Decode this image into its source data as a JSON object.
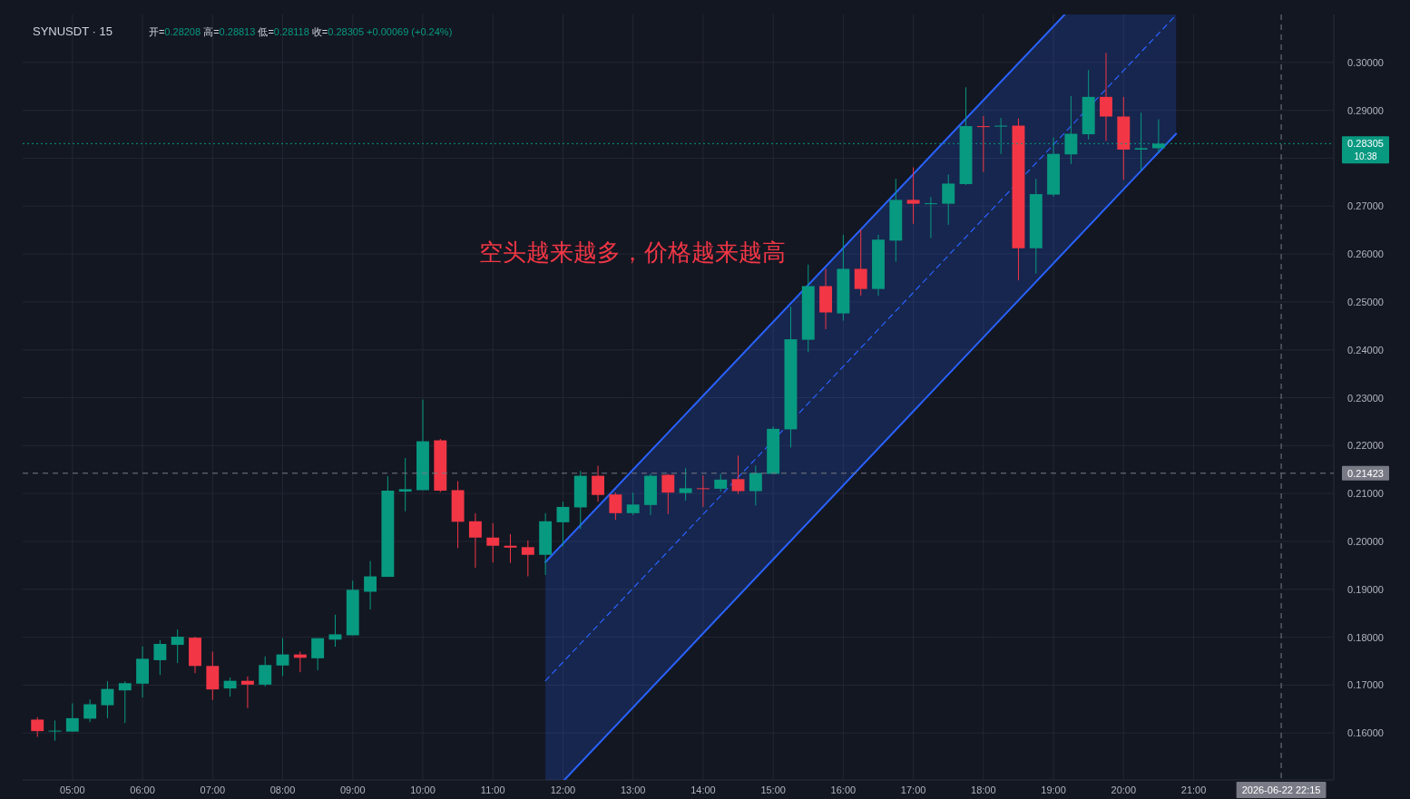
{
  "chart_data": {
    "type": "candlestick",
    "title": "SYNUSDT · 15",
    "subtitle": "开=0.28208 高=0.28813 低=0.28118 收=0.28305 +0.00069 (+0.24%)",
    "annotations": [
      "空头越来越多，价格越来越高"
    ],
    "x": [
      4.5,
      4.75,
      5,
      5.25,
      5.5,
      5.75,
      6,
      6.25,
      6.5,
      6.75,
      7,
      7.25,
      7.5,
      7.75,
      8,
      8.25,
      8.5,
      8.75,
      9,
      9.25,
      9.5,
      9.75,
      10,
      10.25,
      10.5,
      10.75,
      11,
      11.25,
      11.5,
      11.75,
      12,
      12.25,
      12.5,
      12.75,
      13,
      13.25,
      13.5,
      13.75,
      14,
      14.25,
      14.5,
      14.75,
      15,
      15.25,
      15.5,
      15.75,
      16,
      16.25,
      16.5,
      16.75,
      17,
      17.25,
      17.5,
      17.75,
      18,
      18.25,
      18.5,
      18.75,
      19,
      19.25,
      19.5,
      19.75,
      20,
      20.25,
      20.5
    ],
    "ohlc": [
      [
        0.1628,
        0.1633,
        0.1592,
        0.1604
      ],
      [
        0.1604,
        0.1626,
        0.1584,
        0.1605
      ],
      [
        0.1603,
        0.1662,
        0.1603,
        0.1631
      ],
      [
        0.163,
        0.167,
        0.1623,
        0.166
      ],
      [
        0.1658,
        0.1708,
        0.1631,
        0.1692
      ],
      [
        0.1689,
        0.1708,
        0.1621,
        0.1704
      ],
      [
        0.1703,
        0.1781,
        0.1674,
        0.1755
      ],
      [
        0.1752,
        0.1794,
        0.1721,
        0.1786
      ],
      [
        0.1784,
        0.1816,
        0.1746,
        0.1801
      ],
      [
        0.1799,
        0.1801,
        0.1725,
        0.174
      ],
      [
        0.174,
        0.177,
        0.1669,
        0.1691
      ],
      [
        0.1693,
        0.1716,
        0.1676,
        0.1709
      ],
      [
        0.1709,
        0.1718,
        0.1652,
        0.1701
      ],
      [
        0.1701,
        0.176,
        0.1697,
        0.1742
      ],
      [
        0.1741,
        0.1798,
        0.1719,
        0.1764
      ],
      [
        0.1764,
        0.177,
        0.1727,
        0.1757
      ],
      [
        0.1756,
        0.1798,
        0.1731,
        0.1798
      ],
      [
        0.1795,
        0.1847,
        0.178,
        0.1806
      ],
      [
        0.1804,
        0.1918,
        0.1804,
        0.1899
      ],
      [
        0.1895,
        0.1959,
        0.1858,
        0.1927
      ],
      [
        0.1926,
        0.2136,
        0.1926,
        0.2106
      ],
      [
        0.2104,
        0.2174,
        0.2063,
        0.2109
      ],
      [
        0.2107,
        0.2296,
        0.2107,
        0.2209
      ],
      [
        0.2211,
        0.2214,
        0.2103,
        0.2106
      ],
      [
        0.2107,
        0.2126,
        0.1986,
        0.2041
      ],
      [
        0.2042,
        0.2059,
        0.1945,
        0.2008
      ],
      [
        0.2008,
        0.2038,
        0.1956,
        0.1991
      ],
      [
        0.1991,
        0.2015,
        0.1955,
        0.1987
      ],
      [
        0.1988,
        0.2002,
        0.1927,
        0.1972
      ],
      [
        0.1972,
        0.2059,
        0.193,
        0.2042
      ],
      [
        0.204,
        0.2083,
        0.199,
        0.2072
      ],
      [
        0.2071,
        0.2147,
        0.2026,
        0.2137
      ],
      [
        0.2137,
        0.2158,
        0.2083,
        0.2097
      ],
      [
        0.2098,
        0.2102,
        0.2045,
        0.2059
      ],
      [
        0.2059,
        0.2102,
        0.2055,
        0.2077
      ],
      [
        0.2076,
        0.2141,
        0.2055,
        0.2137
      ],
      [
        0.2139,
        0.2141,
        0.2057,
        0.2102
      ],
      [
        0.2101,
        0.2153,
        0.2085,
        0.2111
      ],
      [
        0.2111,
        0.2138,
        0.2072,
        0.211
      ],
      [
        0.211,
        0.2141,
        0.2104,
        0.2129
      ],
      [
        0.213,
        0.2179,
        0.2099,
        0.2105
      ],
      [
        0.2105,
        0.2158,
        0.2075,
        0.2143
      ],
      [
        0.2141,
        0.224,
        0.2141,
        0.2235
      ],
      [
        0.2234,
        0.249,
        0.2196,
        0.2422
      ],
      [
        0.2421,
        0.2578,
        0.2395,
        0.2533
      ],
      [
        0.2533,
        0.2569,
        0.2443,
        0.2478
      ],
      [
        0.2476,
        0.264,
        0.2461,
        0.2569
      ],
      [
        0.2569,
        0.2651,
        0.2513,
        0.2527
      ],
      [
        0.2527,
        0.264,
        0.2513,
        0.263
      ],
      [
        0.2628,
        0.2757,
        0.2584,
        0.2713
      ],
      [
        0.2713,
        0.2781,
        0.2663,
        0.2705
      ],
      [
        0.2705,
        0.2719,
        0.2633,
        0.2706
      ],
      [
        0.2705,
        0.2766,
        0.2661,
        0.2747
      ],
      [
        0.2746,
        0.2948,
        0.2744,
        0.2867
      ],
      [
        0.2867,
        0.2888,
        0.2771,
        0.2865
      ],
      [
        0.2866,
        0.2884,
        0.2809,
        0.2868
      ],
      [
        0.2868,
        0.2883,
        0.2545,
        0.2612
      ],
      [
        0.2612,
        0.2757,
        0.2559,
        0.2725
      ],
      [
        0.2724,
        0.2843,
        0.272,
        0.2809
      ],
      [
        0.2808,
        0.293,
        0.2788,
        0.2851
      ],
      [
        0.285,
        0.2984,
        0.2839,
        0.2928
      ],
      [
        0.2928,
        0.302,
        0.2836,
        0.2887
      ],
      [
        0.2887,
        0.2928,
        0.2755,
        0.2818
      ],
      [
        0.2818,
        0.2895,
        0.2774,
        0.2821
      ],
      [
        0.28208,
        0.28813,
        0.28118,
        0.28305
      ]
    ],
    "colors": [
      "#f23645",
      "#089981",
      "#089981",
      "#089981",
      "#089981",
      "#089981",
      "#089981",
      "#089981",
      "#089981",
      "#f23645",
      "#f23645",
      "#089981",
      "#f23645",
      "#089981",
      "#089981",
      "#f23645",
      "#089981",
      "#089981",
      "#089981",
      "#089981",
      "#089981",
      "#089981",
      "#089981",
      "#f23645",
      "#f23645",
      "#f23645",
      "#f23645",
      "#f23645",
      "#f23645",
      "#089981",
      "#089981",
      "#089981",
      "#f23645",
      "#f23645",
      "#089981",
      "#089981",
      "#f23645",
      "#089981",
      "#f23645",
      "#089981",
      "#f23645",
      "#089981",
      "#089981",
      "#089981",
      "#089981",
      "#f23645",
      "#089981",
      "#f23645",
      "#089981",
      "#089981",
      "#f23645",
      "#089981",
      "#089981",
      "#089981",
      "#f23645",
      "#089981",
      "#f23645",
      "#089981",
      "#089981",
      "#089981",
      "#089981",
      "#f23645",
      "#f23645",
      "#089981",
      "#089981"
    ],
    "series": [
      {
        "type": "line",
        "color": "#2962ff",
        "line_style": "solid",
        "x": [
          11.75,
          19.16
        ],
        "values": [
          0.1957,
          0.31
        ]
      },
      {
        "type": "line",
        "color": "#2962ff",
        "line_style": "dashed",
        "x": [
          11.75,
          12.02,
          19.16,
          20.75
        ],
        "values": [
          0.1709,
          0.1751,
          0.2853,
          0.3099
        ],
        "lower": [
          0.1502,
          0.1502,
          0.2605,
          0.2851
        ],
        "upper": [
          0.1957,
          0.1999,
          0.31,
          0.31
        ]
      },
      {
        "type": "line",
        "color": "#2962ff",
        "line_style": "solid",
        "x": [
          12.02,
          20.75
        ],
        "values": [
          0.1502,
          0.2851
        ]
      }
    ],
    "ref_lines": [
      {
        "axis": "y",
        "value": 0.28305,
        "label": "0.28305\n10:38",
        "color": "#089981",
        "line_style": "dotted"
      },
      {
        "axis": "y",
        "value": 0.21423,
        "label": "0.21423",
        "color": "#787b86",
        "line_style": "dashed"
      },
      {
        "axis": "x",
        "value": 22.25,
        "label": "2026-06-22 22:15",
        "color": "#787b86",
        "line_style": "dashed"
      }
    ],
    "xlim": [
      4.29,
      23.0
    ],
    "xticks": [
      {
        "value": 5,
        "label": "05:00"
      },
      {
        "value": 6,
        "label": "06:00"
      },
      {
        "value": 7,
        "label": "07:00"
      },
      {
        "value": 8,
        "label": "08:00"
      },
      {
        "value": 9,
        "label": "09:00"
      },
      {
        "value": 10,
        "label": "10:00"
      },
      {
        "value": 11,
        "label": "11:00"
      },
      {
        "value": 12,
        "label": "12:00"
      },
      {
        "value": 13,
        "label": "13:00"
      },
      {
        "value": 14,
        "label": "14:00"
      },
      {
        "value": 15,
        "label": "15:00"
      },
      {
        "value": 16,
        "label": "16:00"
      },
      {
        "value": 17,
        "label": "17:00"
      },
      {
        "value": 18,
        "label": "18:00"
      },
      {
        "value": 19,
        "label": "19:00"
      },
      {
        "value": 20,
        "label": "20:00"
      },
      {
        "value": 21,
        "label": "21:00"
      }
    ],
    "ylim": [
      0.1502,
      0.31
    ],
    "yticks": [
      {
        "value": 0.16,
        "label": "0.16000"
      },
      {
        "value": 0.17,
        "label": "0.17000"
      },
      {
        "value": 0.18,
        "label": "0.18000"
      },
      {
        "value": 0.19,
        "label": "0.19000"
      },
      {
        "value": 0.2,
        "label": "0.20000"
      },
      {
        "value": 0.21,
        "label": "0.21000"
      },
      {
        "value": 0.22,
        "label": "0.22000"
      },
      {
        "value": 0.23,
        "label": "0.23000"
      },
      {
        "value": 0.24,
        "label": "0.24000"
      },
      {
        "value": 0.25,
        "label": "0.25000"
      },
      {
        "value": 0.26,
        "label": "0.26000"
      },
      {
        "value": 0.27,
        "label": "0.27000"
      },
      {
        "value": 0.28,
        "label": null
      },
      {
        "value": 0.29,
        "label": "0.29000"
      },
      {
        "value": 0.3,
        "label": "0.30000"
      }
    ],
    "grid": true
  }
}
